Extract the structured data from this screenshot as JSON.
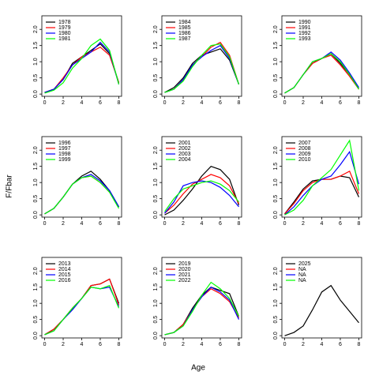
{
  "ylabel": "F/Fbar",
  "xlabel": "Age",
  "chart_data": [
    {
      "type": "line",
      "x": [
        0,
        1,
        2,
        3,
        4,
        5,
        6,
        7,
        8
      ],
      "xlim": [
        -0.3,
        8.3
      ],
      "ylim": [
        -0.07,
        2.42
      ],
      "xticks": [
        0,
        2,
        4,
        6,
        8
      ],
      "yticks": [
        {
          "value": 0,
          "label": "0.0"
        },
        {
          "value": 0.5,
          "label": "0.5"
        },
        {
          "value": 1,
          "label": "1.0"
        },
        {
          "value": 1.5,
          "label": "1.5"
        },
        {
          "value": 2,
          "label": "2.0"
        }
      ],
      "legend": "top-left",
      "series": [
        {
          "name": "1978",
          "color": "#000000",
          "values": [
            0.05,
            0.15,
            0.45,
            0.95,
            1.15,
            1.35,
            1.55,
            1.25,
            0.35
          ]
        },
        {
          "name": "1979",
          "color": "#ff0000",
          "values": [
            0.05,
            0.15,
            0.5,
            0.9,
            1.15,
            1.3,
            1.45,
            1.2,
            0.35
          ]
        },
        {
          "name": "1980",
          "color": "#0000ff",
          "values": [
            0.05,
            0.15,
            0.45,
            0.9,
            1.1,
            1.3,
            1.6,
            1.3,
            0.3
          ]
        },
        {
          "name": "1981",
          "color": "#00ff00",
          "values": [
            0.03,
            0.12,
            0.35,
            0.8,
            1.1,
            1.5,
            1.7,
            1.35,
            0.3
          ]
        }
      ]
    },
    {
      "type": "line",
      "x": [
        0,
        1,
        2,
        3,
        4,
        5,
        6,
        7,
        8
      ],
      "xlim": [
        -0.3,
        8.3
      ],
      "ylim": [
        -0.07,
        2.42
      ],
      "xticks": [
        0,
        2,
        4,
        6,
        8
      ],
      "yticks": [
        {
          "value": 0,
          "label": "0.0"
        },
        {
          "value": 0.5,
          "label": "0.5"
        },
        {
          "value": 1,
          "label": "1.0"
        },
        {
          "value": 1.5,
          "label": "1.5"
        },
        {
          "value": 2,
          "label": "2.0"
        }
      ],
      "legend": "top-left",
      "series": [
        {
          "name": "1984",
          "color": "#000000",
          "values": [
            0.05,
            0.2,
            0.5,
            0.95,
            1.2,
            1.3,
            1.4,
            1.05,
            0.3
          ]
        },
        {
          "name": "1985",
          "color": "#ff0000",
          "values": [
            0.05,
            0.15,
            0.45,
            0.9,
            1.15,
            1.45,
            1.6,
            1.2,
            0.3
          ]
        },
        {
          "name": "1986",
          "color": "#0000ff",
          "values": [
            0.05,
            0.15,
            0.45,
            0.9,
            1.15,
            1.35,
            1.5,
            1.1,
            0.3
          ]
        },
        {
          "name": "1987",
          "color": "#00ff00",
          "values": [
            0.05,
            0.15,
            0.4,
            0.85,
            1.2,
            1.5,
            1.55,
            1.15,
            0.3
          ]
        }
      ]
    },
    {
      "type": "line",
      "x": [
        0,
        1,
        2,
        3,
        4,
        5,
        6,
        7,
        8
      ],
      "xlim": [
        -0.3,
        8.3
      ],
      "ylim": [
        -0.07,
        2.42
      ],
      "xticks": [
        0,
        2,
        4,
        6,
        8
      ],
      "yticks": [
        {
          "value": 0,
          "label": "0.0"
        },
        {
          "value": 0.5,
          "label": "0.5"
        },
        {
          "value": 1,
          "label": "1.0"
        },
        {
          "value": 1.5,
          "label": "1.5"
        },
        {
          "value": 2,
          "label": "2.0"
        }
      ],
      "legend": "top-left",
      "series": [
        {
          "name": "1990",
          "color": "#000000",
          "values": [
            0.03,
            0.2,
            0.6,
            0.95,
            1.1,
            1.25,
            0.95,
            0.6,
            0.15
          ]
        },
        {
          "name": "1991",
          "color": "#ff0000",
          "values": [
            0.03,
            0.2,
            0.6,
            0.95,
            1.1,
            1.2,
            0.9,
            0.55,
            0.15
          ]
        },
        {
          "name": "1992",
          "color": "#0000ff",
          "values": [
            0.03,
            0.2,
            0.6,
            1.0,
            1.1,
            1.3,
            1.05,
            0.65,
            0.2
          ]
        },
        {
          "name": "1993",
          "color": "#00ff00",
          "values": [
            0.03,
            0.2,
            0.6,
            1.0,
            1.1,
            1.25,
            1.0,
            0.6,
            0.15
          ]
        }
      ]
    },
    {
      "type": "line",
      "x": [
        0,
        1,
        2,
        3,
        4,
        5,
        6,
        7,
        8
      ],
      "xlim": [
        -0.3,
        8.3
      ],
      "ylim": [
        -0.07,
        2.42
      ],
      "xticks": [
        0,
        2,
        4,
        6,
        8
      ],
      "yticks": [
        {
          "value": 0,
          "label": "0.0"
        },
        {
          "value": 0.5,
          "label": "0.5"
        },
        {
          "value": 1,
          "label": "1.0"
        },
        {
          "value": 1.5,
          "label": "1.5"
        },
        {
          "value": 2,
          "label": "2.0"
        }
      ],
      "legend": "top-left",
      "series": [
        {
          "name": "1996",
          "color": "#000000",
          "values": [
            0.03,
            0.2,
            0.55,
            0.95,
            1.2,
            1.35,
            1.1,
            0.75,
            0.25
          ]
        },
        {
          "name": "1997",
          "color": "#ff0000",
          "values": [
            0.03,
            0.2,
            0.55,
            0.95,
            1.15,
            1.2,
            1.0,
            0.7,
            0.25
          ]
        },
        {
          "name": "1998",
          "color": "#0000ff",
          "values": [
            0.03,
            0.2,
            0.55,
            0.95,
            1.15,
            1.25,
            1.05,
            0.75,
            0.25
          ]
        },
        {
          "name": "1999",
          "color": "#00ff00",
          "values": [
            0.03,
            0.2,
            0.55,
            0.95,
            1.15,
            1.2,
            1.0,
            0.7,
            0.2
          ]
        }
      ]
    },
    {
      "type": "line",
      "x": [
        0,
        1,
        2,
        3,
        4,
        5,
        6,
        7,
        8
      ],
      "xlim": [
        -0.3,
        8.3
      ],
      "ylim": [
        -0.07,
        2.42
      ],
      "xticks": [
        0,
        2,
        4,
        6,
        8
      ],
      "yticks": [
        {
          "value": 0,
          "label": "0.0"
        },
        {
          "value": 0.5,
          "label": "0.5"
        },
        {
          "value": 1,
          "label": "1.0"
        },
        {
          "value": 1.5,
          "label": "1.5"
        },
        {
          "value": 2,
          "label": "2.0"
        }
      ],
      "legend": "top-left",
      "series": [
        {
          "name": "2001",
          "color": "#000000",
          "values": [
            0.0,
            0.15,
            0.45,
            0.8,
            1.2,
            1.5,
            1.4,
            1.1,
            0.3
          ]
        },
        {
          "name": "2002",
          "color": "#ff0000",
          "values": [
            0.05,
            0.3,
            0.65,
            0.95,
            1.1,
            1.25,
            1.15,
            0.9,
            0.35
          ]
        },
        {
          "name": "2003",
          "color": "#0000ff",
          "values": [
            0.05,
            0.4,
            0.9,
            1.0,
            1.05,
            1.0,
            0.85,
            0.6,
            0.25
          ]
        },
        {
          "name": "2004",
          "color": "#00ff00",
          "values": [
            0.1,
            0.5,
            0.8,
            0.9,
            1.0,
            1.05,
            0.95,
            0.75,
            0.4
          ]
        }
      ]
    },
    {
      "type": "line",
      "x": [
        0,
        1,
        2,
        3,
        4,
        5,
        6,
        7,
        8
      ],
      "xlim": [
        -0.3,
        8.3
      ],
      "ylim": [
        -0.07,
        2.42
      ],
      "xticks": [
        0,
        2,
        4,
        6,
        8
      ],
      "yticks": [
        {
          "value": 0,
          "label": "0.0"
        },
        {
          "value": 0.5,
          "label": "0.5"
        },
        {
          "value": 1,
          "label": "1.0"
        },
        {
          "value": 1.5,
          "label": "1.5"
        },
        {
          "value": 2,
          "label": "2.0"
        }
      ],
      "legend": "top-left",
      "series": [
        {
          "name": "2007",
          "color": "#000000",
          "values": [
            0.03,
            0.4,
            0.8,
            1.05,
            1.1,
            1.1,
            1.2,
            1.15,
            0.55
          ]
        },
        {
          "name": "2008",
          "color": "#ff0000",
          "values": [
            0.03,
            0.35,
            0.75,
            1.0,
            1.1,
            1.1,
            1.2,
            1.35,
            0.65
          ]
        },
        {
          "name": "2009",
          "color": "#0000ff",
          "values": [
            0.0,
            0.25,
            0.6,
            0.9,
            1.1,
            1.2,
            1.55,
            1.95,
            0.95
          ]
        },
        {
          "name": "2010",
          "color": "#00ff00",
          "values": [
            0.0,
            0.15,
            0.45,
            0.9,
            1.15,
            1.4,
            1.85,
            2.3,
            0.75
          ]
        }
      ]
    },
    {
      "type": "line",
      "x": [
        0,
        1,
        2,
        3,
        4,
        5,
        6,
        7,
        8
      ],
      "xlim": [
        -0.3,
        8.3
      ],
      "ylim": [
        -0.07,
        2.42
      ],
      "xticks": [
        0,
        2,
        4,
        6,
        8
      ],
      "yticks": [
        {
          "value": 0,
          "label": "0.0"
        },
        {
          "value": 0.5,
          "label": "0.5"
        },
        {
          "value": 1,
          "label": "1.0"
        },
        {
          "value": 1.5,
          "label": "1.5"
        },
        {
          "value": 2,
          "label": "2.0"
        }
      ],
      "legend": "top-left",
      "series": [
        {
          "name": "2013",
          "color": "#000000",
          "values": [
            0.03,
            0.2,
            0.5,
            0.85,
            1.15,
            1.55,
            1.6,
            1.75,
            1.0
          ]
        },
        {
          "name": "2014",
          "color": "#ff0000",
          "values": [
            0.03,
            0.2,
            0.5,
            0.85,
            1.15,
            1.55,
            1.6,
            1.75,
            0.95
          ]
        },
        {
          "name": "2015",
          "color": "#0000ff",
          "values": [
            0.03,
            0.15,
            0.5,
            0.8,
            1.15,
            1.5,
            1.45,
            1.5,
            0.9
          ]
        },
        {
          "name": "2016",
          "color": "#00ff00",
          "values": [
            0.03,
            0.15,
            0.5,
            0.85,
            1.15,
            1.5,
            1.45,
            1.55,
            0.85
          ]
        }
      ]
    },
    {
      "type": "line",
      "x": [
        0,
        1,
        2,
        3,
        4,
        5,
        6,
        7,
        8
      ],
      "xlim": [
        -0.3,
        8.3
      ],
      "ylim": [
        -0.07,
        2.42
      ],
      "xticks": [
        0,
        2,
        4,
        6,
        8
      ],
      "yticks": [
        {
          "value": 0,
          "label": "0.0"
        },
        {
          "value": 0.5,
          "label": "0.5"
        },
        {
          "value": 1,
          "label": "1.0"
        },
        {
          "value": 1.5,
          "label": "1.5"
        },
        {
          "value": 2,
          "label": "2.0"
        }
      ],
      "legend": "top-left",
      "series": [
        {
          "name": "2019",
          "color": "#000000",
          "values": [
            0.03,
            0.1,
            0.35,
            0.85,
            1.25,
            1.5,
            1.4,
            1.3,
            0.6
          ]
        },
        {
          "name": "2020",
          "color": "#ff0000",
          "values": [
            0.03,
            0.1,
            0.35,
            0.8,
            1.2,
            1.45,
            1.3,
            1.05,
            0.55
          ]
        },
        {
          "name": "2021",
          "color": "#0000ff",
          "values": [
            0.03,
            0.1,
            0.3,
            0.8,
            1.2,
            1.5,
            1.35,
            1.1,
            0.5
          ]
        },
        {
          "name": "2022",
          "color": "#00ff00",
          "values": [
            0.03,
            0.1,
            0.3,
            0.75,
            1.25,
            1.65,
            1.45,
            1.15,
            0.6
          ]
        }
      ]
    },
    {
      "type": "line",
      "x": [
        0,
        1,
        2,
        3,
        4,
        5,
        6,
        7,
        8
      ],
      "xlim": [
        -0.3,
        8.3
      ],
      "ylim": [
        -0.07,
        2.42
      ],
      "xticks": [
        0,
        2,
        4,
        6,
        8
      ],
      "yticks": [
        {
          "value": 0,
          "label": "0.0"
        },
        {
          "value": 0.5,
          "label": "0.5"
        },
        {
          "value": 1,
          "label": "1.0"
        },
        {
          "value": 1.5,
          "label": "1.5"
        },
        {
          "value": 2,
          "label": "2.0"
        }
      ],
      "legend": "top-left",
      "series": [
        {
          "name": "2025",
          "color": "#000000",
          "values": [
            0.0,
            0.1,
            0.3,
            0.8,
            1.35,
            1.55,
            1.1,
            0.75,
            0.4
          ]
        },
        {
          "name": "NA",
          "color": "#ff0000",
          "values": [
            null,
            null,
            null,
            null,
            null,
            null,
            null,
            null,
            null
          ]
        },
        {
          "name": "NA",
          "color": "#0000ff",
          "values": [
            null,
            null,
            null,
            null,
            null,
            null,
            null,
            null,
            null
          ]
        },
        {
          "name": "NA",
          "color": "#00ff00",
          "values": [
            null,
            null,
            null,
            null,
            null,
            null,
            null,
            null,
            null
          ]
        }
      ]
    }
  ]
}
